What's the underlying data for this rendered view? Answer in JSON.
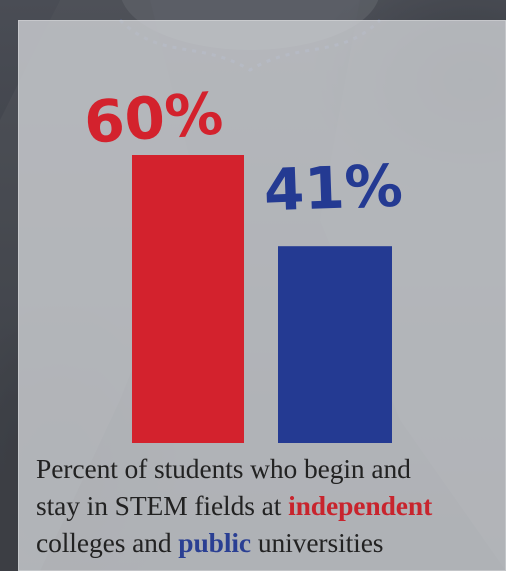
{
  "chart_data": {
    "type": "bar",
    "categories": [
      "independent",
      "public"
    ],
    "values": [
      60,
      41
    ],
    "value_labels": [
      "60%",
      "41%"
    ],
    "colors": [
      "#d3222d",
      "#243a92"
    ],
    "ylim": [
      0,
      60
    ],
    "grid": false
  },
  "caption": {
    "part1": "Percent of students who begin and",
    "part2": "stay in STEM fields at",
    "highlight1": "independent",
    "part3": "colleges and",
    "highlight2": "public",
    "part4": "universities"
  }
}
